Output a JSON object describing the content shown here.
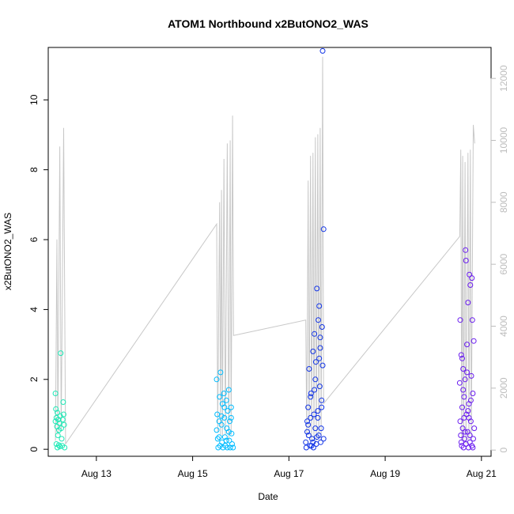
{
  "chart_data": {
    "type": "scatter",
    "title": "ATOM1 Northbound x2ButONO2_WAS",
    "xlabel": "Date",
    "ylabel": "x2ButONO2_WAS",
    "x_ticks": [
      {
        "value": 13,
        "label": "Aug 13"
      },
      {
        "value": 15,
        "label": "Aug 15"
      },
      {
        "value": 17,
        "label": "Aug 17"
      },
      {
        "value": 19,
        "label": "Aug 19"
      },
      {
        "value": 21,
        "label": "Aug 21"
      }
    ],
    "xlim": [
      12.0,
      21.2
    ],
    "ylim": [
      -0.2,
      11.5
    ],
    "y_ticks": [
      0,
      2,
      4,
      6,
      8,
      10
    ],
    "y2_ticks": [
      0,
      2000,
      4000,
      6000,
      8000,
      10000,
      12000
    ],
    "y2lim": [
      -200,
      13000
    ],
    "colors": {
      "axis": "#000000",
      "line": "#c8c8c8",
      "right_axis": "#bdbdbd",
      "group_colors": [
        "#1de9b6",
        "#00bcff",
        "#1234e6",
        "#6a1cf0"
      ]
    },
    "altitude_line": {
      "points": [
        [
          12.15,
          300
        ],
        [
          12.18,
          6800
        ],
        [
          12.2,
          500
        ],
        [
          12.24,
          9800
        ],
        [
          12.27,
          600
        ],
        [
          12.32,
          10400
        ],
        [
          12.36,
          200
        ],
        [
          15.5,
          7300
        ],
        [
          15.52,
          600
        ],
        [
          15.56,
          8000
        ],
        [
          15.58,
          500
        ],
        [
          15.6,
          8400
        ],
        [
          15.62,
          400
        ],
        [
          15.65,
          9400
        ],
        [
          15.68,
          500
        ],
        [
          15.72,
          9900
        ],
        [
          15.75,
          300
        ],
        [
          15.78,
          10000
        ],
        [
          15.8,
          500
        ],
        [
          15.83,
          10800
        ],
        [
          15.85,
          3700
        ],
        [
          17.35,
          4200
        ],
        [
          17.37,
          400
        ],
        [
          17.4,
          8700
        ],
        [
          17.42,
          500
        ],
        [
          17.45,
          9500
        ],
        [
          17.47,
          300
        ],
        [
          17.5,
          9600
        ],
        [
          17.52,
          400
        ],
        [
          17.55,
          10100
        ],
        [
          17.57,
          300
        ],
        [
          17.6,
          10200
        ],
        [
          17.62,
          400
        ],
        [
          17.65,
          10400
        ],
        [
          17.67,
          300
        ],
        [
          17.7,
          12700
        ],
        [
          17.72,
          1500
        ],
        [
          20.55,
          6900
        ],
        [
          20.57,
          9700
        ],
        [
          20.59,
          300
        ],
        [
          20.61,
          9500
        ],
        [
          20.63,
          300
        ],
        [
          20.66,
          9300
        ],
        [
          20.68,
          200
        ],
        [
          20.72,
          9600
        ],
        [
          20.74,
          300
        ],
        [
          20.77,
          9700
        ],
        [
          20.79,
          300
        ],
        [
          20.83,
          10500
        ],
        [
          20.86,
          9900
        ]
      ]
    },
    "series": [
      {
        "x": [
          12.15,
          12.15,
          12.16,
          12.17,
          12.17,
          12.18,
          12.19,
          12.19,
          12.2,
          12.21,
          12.22,
          12.22,
          12.23,
          12.24,
          12.25,
          12.26,
          12.27,
          12.28,
          12.29,
          12.3,
          12.31,
          12.32,
          12.33,
          12.34
        ],
        "y": [
          1.6,
          0.8,
          1.15,
          0.15,
          0.9,
          0.65,
          0.05,
          1.05,
          0.4,
          0.85,
          0.12,
          0.55,
          0.75,
          0.08,
          0.95,
          2.75,
          0.6,
          0.3,
          0.1,
          0.85,
          1.35,
          1.0,
          0.7,
          0.05
        ]
      },
      {
        "x": [
          15.5,
          15.51,
          15.52,
          15.53,
          15.55,
          15.56,
          15.57,
          15.58,
          15.6,
          15.61,
          15.62,
          15.63,
          15.65,
          15.66,
          15.67,
          15.68,
          15.7,
          15.71,
          15.72,
          15.73,
          15.75,
          15.76,
          15.77,
          15.78,
          15.8,
          15.81,
          15.82,
          15.84,
          15.5,
          15.55,
          15.6,
          15.66,
          15.7,
          15.75,
          15.8
        ],
        "y": [
          2.0,
          1.0,
          0.3,
          0.05,
          0.8,
          1.5,
          0.1,
          2.2,
          0.7,
          0.2,
          1.3,
          0.05,
          1.6,
          0.9,
          0.35,
          0.1,
          1.4,
          0.6,
          0.05,
          1.1,
          1.7,
          0.25,
          0.8,
          0.05,
          1.2,
          0.45,
          0.15,
          0.05,
          0.55,
          0.35,
          0.95,
          1.2,
          0.25,
          0.5,
          0.9
        ]
      },
      {
        "x": [
          17.35,
          17.36,
          17.38,
          17.4,
          17.41,
          17.42,
          17.44,
          17.45,
          17.46,
          17.48,
          17.5,
          17.51,
          17.52,
          17.53,
          17.55,
          17.56,
          17.57,
          17.58,
          17.6,
          17.61,
          17.62,
          17.63,
          17.64,
          17.65,
          17.66,
          17.67,
          17.68,
          17.69,
          17.7,
          17.7,
          17.72,
          17.72,
          17.4,
          17.45,
          17.5,
          17.55,
          17.6,
          17.65,
          17.38,
          17.47,
          17.53,
          17.58,
          17.63,
          17.68
        ],
        "y": [
          0.2,
          0.05,
          0.8,
          1.2,
          0.4,
          2.3,
          0.1,
          0.9,
          1.6,
          0.3,
          2.8,
          0.05,
          1.0,
          3.3,
          0.6,
          2.5,
          0.15,
          4.6,
          1.1,
          3.7,
          0.4,
          4.1,
          1.8,
          2.9,
          0.2,
          0.6,
          1.4,
          3.5,
          2.4,
          11.4,
          6.3,
          0.3,
          0.7,
          1.5,
          0.2,
          2.0,
          0.9,
          3.2,
          0.5,
          0.1,
          1.7,
          0.35,
          2.6,
          1.2
        ]
      },
      {
        "x": [
          20.55,
          20.56,
          20.57,
          20.58,
          20.59,
          20.6,
          20.61,
          20.62,
          20.63,
          20.64,
          20.65,
          20.66,
          20.67,
          20.68,
          20.69,
          20.7,
          20.71,
          20.72,
          20.73,
          20.74,
          20.75,
          20.76,
          20.77,
          20.78,
          20.79,
          20.8,
          20.81,
          20.82,
          20.83,
          20.84,
          20.85,
          20.56,
          20.6,
          20.64,
          20.68,
          20.72,
          20.76,
          20.8,
          20.58,
          20.62,
          20.66,
          20.7,
          20.74,
          20.78,
          20.82
        ],
        "y": [
          1.9,
          3.7,
          0.4,
          2.7,
          0.1,
          1.2,
          0.6,
          2.3,
          0.05,
          1.5,
          0.3,
          2.0,
          5.7,
          0.15,
          1.0,
          3.0,
          0.5,
          4.2,
          0.05,
          1.3,
          5.0,
          0.2,
          4.7,
          0.8,
          2.1,
          0.1,
          3.7,
          1.6,
          0.3,
          3.1,
          0.6,
          0.8,
          2.6,
          0.9,
          5.4,
          1.1,
          0.4,
          4.9,
          0.2,
          1.7,
          0.5,
          2.2,
          0.9,
          1.4,
          0.05
        ]
      }
    ]
  }
}
